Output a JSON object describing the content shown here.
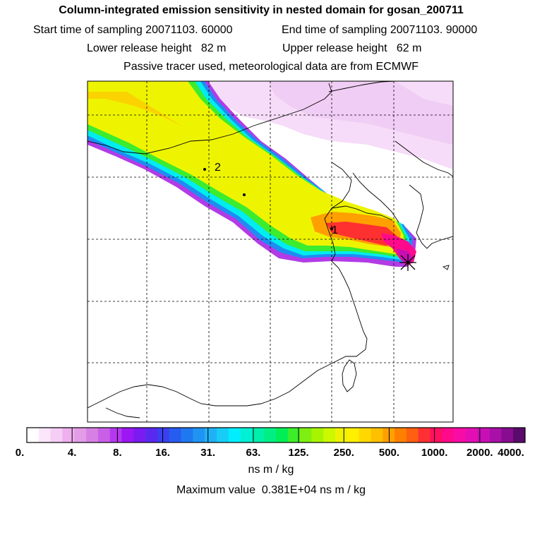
{
  "title": "Column-integrated emission sensitivity in nested domain for gosan_200711",
  "sampling": {
    "start": "Start time of sampling 20071103. 60000",
    "end": "End time of sampling 20071103. 90000"
  },
  "release": {
    "lower": "Lower release height   82 m",
    "upper": "Upper release height   62 m"
  },
  "tracer_note": "Passive tracer used, meteorological data are from ECMWF",
  "map": {
    "markers": [
      {
        "label": "1"
      },
      {
        "label": "2"
      },
      {
        "label": ""
      }
    ],
    "receptor_symbol": "star"
  },
  "colorbar": {
    "labels": [
      "0.",
      "4.",
      "8.",
      "16.",
      "31.",
      "63.",
      "125.",
      "250.",
      "500.",
      "1000.",
      "2000.",
      "4000."
    ],
    "colors": [
      "#ffffff",
      "#fbe6fb",
      "#f5cdf5",
      "#eeb0ee",
      "#e29de6",
      "#d680e4",
      "#c95fe6",
      "#b538ef",
      "#9b17f3",
      "#7a1bf1",
      "#5a29ef",
      "#3c3ff0",
      "#275cf0",
      "#1f78f0",
      "#1f94f3",
      "#1fb1f6",
      "#17cdf7",
      "#00eeff",
      "#00f0d4",
      "#00efaa",
      "#00ef85",
      "#00ee55",
      "#3ced2a",
      "#7eef11",
      "#a8f400",
      "#ccf800",
      "#eef200",
      "#fff000",
      "#ffd800",
      "#ffc000",
      "#ffa000",
      "#ff8000",
      "#ff5f10",
      "#ff3033",
      "#ff1060",
      "#ff0a8c",
      "#f70ca5",
      "#e30fb4",
      "#c80fb5",
      "#a810a8",
      "#880c90",
      "#5a0a6a"
    ],
    "units": "ns m / kg"
  },
  "maximum_value": "Maximum value  0.381E+04 ns m / kg"
}
